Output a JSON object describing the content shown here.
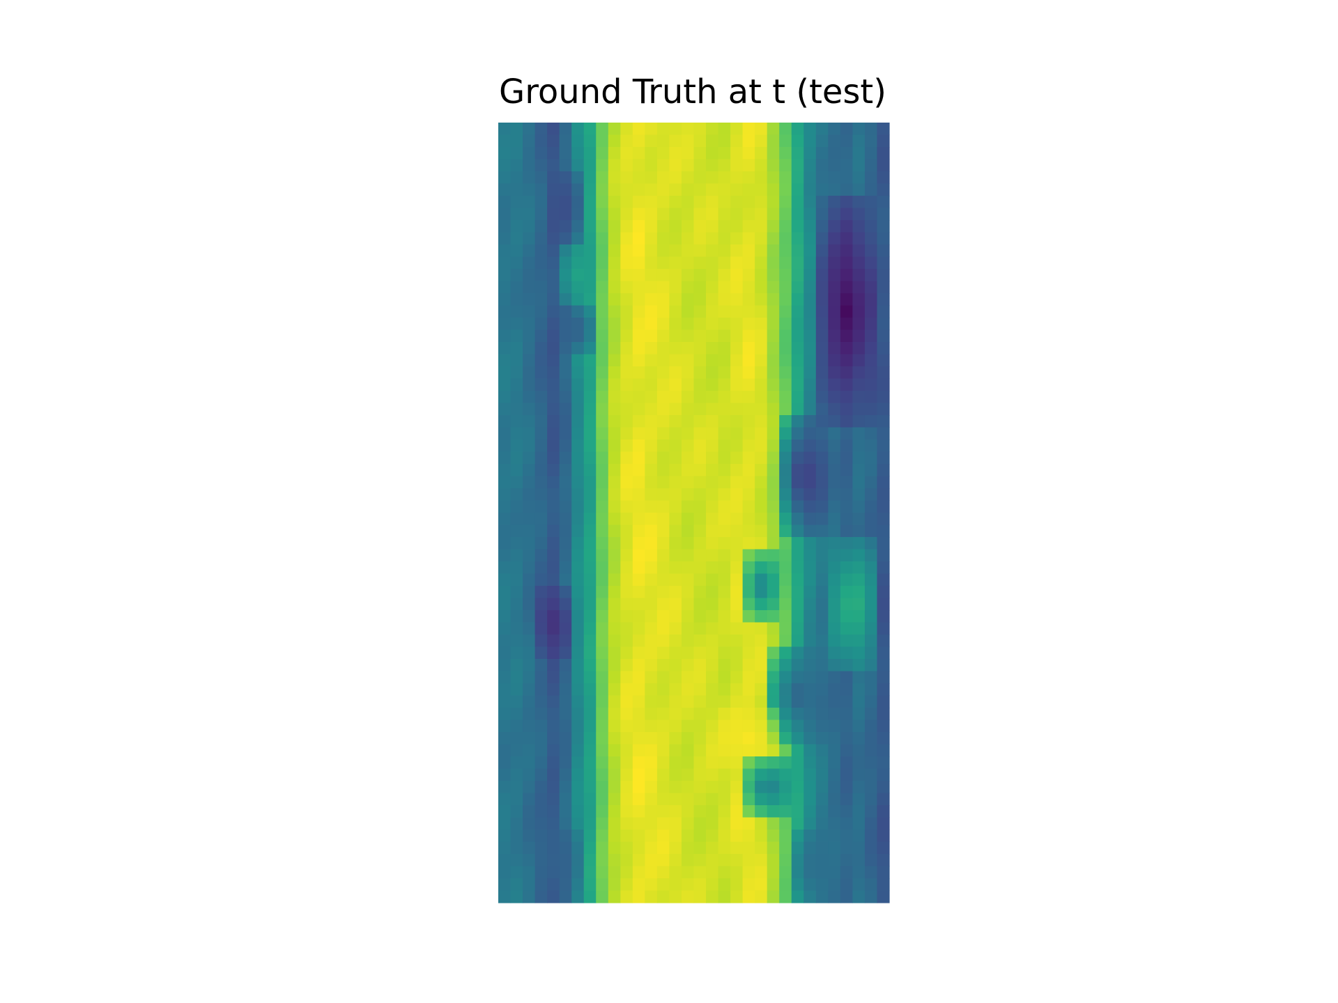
{
  "chart_data": {
    "type": "heatmap",
    "title": "Ground Truth at t (test)",
    "colormap": "viridis",
    "axes_visible": false,
    "grid": false,
    "legend": "none",
    "value_range": [
      0,
      1
    ],
    "rows": 64,
    "cols": 32,
    "column_profile": [
      0.4,
      0.4,
      0.37,
      0.33,
      0.28,
      0.34,
      0.48,
      0.58,
      0.78,
      0.9,
      0.95,
      0.97,
      0.96,
      0.95,
      0.94,
      0.93,
      0.93,
      0.93,
      0.93,
      0.95,
      0.96,
      0.94,
      0.86,
      0.76,
      0.6,
      0.47,
      0.4,
      0.36,
      0.33,
      0.37,
      0.33,
      0.28
    ],
    "features": [
      {
        "row_range": [
          4,
          9
        ],
        "col_range": [
          4,
          6
        ],
        "value": 0.24
      },
      {
        "row_range": [
          10,
          14
        ],
        "col_range": [
          5,
          7
        ],
        "value": 0.58
      },
      {
        "row_range": [
          15,
          18
        ],
        "col_range": [
          5,
          7
        ],
        "value": 0.3
      },
      {
        "row_range": [
          6,
          24
        ],
        "col_range": [
          26,
          30
        ],
        "value": 0.03
      },
      {
        "row_range": [
          24,
          33
        ],
        "col_range": [
          23,
          26
        ],
        "value": 0.16
      },
      {
        "row_range": [
          34,
          44
        ],
        "col_range": [
          27,
          30
        ],
        "value": 0.66
      },
      {
        "row_range": [
          35,
          40
        ],
        "col_range": [
          20,
          22
        ],
        "value": 0.44
      },
      {
        "row_range": [
          38,
          43
        ],
        "col_range": [
          3,
          5
        ],
        "value": 0.14
      },
      {
        "row_range": [
          43,
          50
        ],
        "col_range": [
          22,
          26
        ],
        "value": 0.32
      },
      {
        "row_range": [
          48,
          52
        ],
        "col_range": [
          18,
          22
        ],
        "value": 0.99
      },
      {
        "row_range": [
          52,
          56
        ],
        "col_range": [
          20,
          23
        ],
        "value": 0.4
      },
      {
        "row_range": [
          58,
          63
        ],
        "col_range": [
          3,
          6
        ],
        "value": 0.32
      },
      {
        "row_range": [
          58,
          63
        ],
        "col_range": [
          24,
          27
        ],
        "value": 0.36
      }
    ]
  }
}
